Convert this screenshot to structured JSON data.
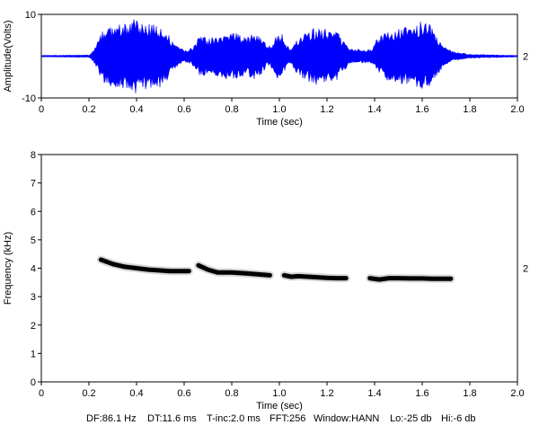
{
  "chart_data": [
    {
      "type": "line",
      "title": "",
      "xlabel": "Time (sec)",
      "ylabel": "Amplitude(Volts)",
      "xlim": [
        0,
        2.0
      ],
      "ylim": [
        -10,
        10
      ],
      "x_ticks": [
        "0",
        "0.2",
        "0.4",
        "0.6",
        "0.8",
        "1.0",
        "1.2",
        "1.4",
        "1.6",
        "1.8",
        "2.0"
      ],
      "y_ticks": [
        "10",
        "-10"
      ],
      "channel_label": "2",
      "grid": false,
      "color": "#0000ff",
      "series": [
        {
          "envelope_x": [
            0,
            0.2,
            0.22,
            0.24,
            0.26,
            0.3,
            0.34,
            0.38,
            0.4,
            0.42,
            0.46,
            0.5,
            0.53,
            0.55,
            0.58,
            0.6,
            0.62,
            0.64,
            0.66,
            0.68,
            0.7,
            0.74,
            0.78,
            0.82,
            0.86,
            0.9,
            0.93,
            0.95,
            0.97,
            0.99,
            1.01,
            1.03,
            1.05,
            1.07,
            1.1,
            1.13,
            1.16,
            1.2,
            1.24,
            1.27,
            1.3,
            1.33,
            1.36,
            1.39,
            1.41,
            1.43,
            1.46,
            1.5,
            1.55,
            1.6,
            1.64,
            1.67,
            1.7,
            1.74,
            1.8,
            2.0
          ],
          "envelope_y": [
            0.2,
            0.3,
            1.5,
            4,
            6.5,
            7.5,
            8,
            8.5,
            9.2,
            8.5,
            8,
            7.5,
            6,
            3.5,
            2,
            1.5,
            1.8,
            2.5,
            4.5,
            5,
            4,
            5.5,
            5.5,
            5.5,
            4.5,
            6,
            4,
            2.5,
            3,
            5.5,
            5.5,
            2.5,
            2,
            4,
            5.5,
            6.5,
            7,
            6.5,
            6,
            3.5,
            2,
            1.8,
            1.7,
            1.8,
            4.5,
            5,
            6,
            6.5,
            7.5,
            8.5,
            7.5,
            4,
            2,
            1,
            0.5,
            0.2
          ]
        }
      ]
    },
    {
      "type": "heatmap",
      "title": "",
      "xlabel": "Time (sec)",
      "ylabel": "Frequency (kHz)",
      "xlim": [
        0,
        2.0
      ],
      "ylim": [
        0,
        8
      ],
      "x_ticks": [
        "0",
        "0.2",
        "0.4",
        "0.6",
        "0.8",
        "1.0",
        "1.2",
        "1.4",
        "1.6",
        "1.8",
        "2.0"
      ],
      "y_ticks": [
        "0",
        "1",
        "2",
        "3",
        "4",
        "5",
        "6",
        "7",
        "8"
      ],
      "channel_label": "2",
      "grid": false,
      "color": "#000000",
      "series": [
        {
          "x": [
            0.25,
            0.3,
            0.35,
            0.4,
            0.45,
            0.5,
            0.54,
            0.58,
            0.62
          ],
          "y": [
            4.3,
            4.15,
            4.05,
            4.0,
            3.95,
            3.92,
            3.9,
            3.9,
            3.9
          ]
        },
        {
          "x": [
            0.66,
            0.7,
            0.74,
            0.8,
            0.86,
            0.92,
            0.96
          ],
          "y": [
            4.1,
            3.95,
            3.85,
            3.85,
            3.82,
            3.78,
            3.75
          ]
        },
        {
          "x": [
            1.02,
            1.05,
            1.08,
            1.12,
            1.16,
            1.2,
            1.24,
            1.28
          ],
          "y": [
            3.75,
            3.7,
            3.72,
            3.7,
            3.68,
            3.66,
            3.65,
            3.65
          ]
        },
        {
          "x": [
            1.38,
            1.42,
            1.46,
            1.5,
            1.55,
            1.6,
            1.64,
            1.68,
            1.72
          ],
          "y": [
            3.65,
            3.6,
            3.65,
            3.65,
            3.64,
            3.64,
            3.63,
            3.63,
            3.63
          ]
        }
      ]
    }
  ],
  "footer": {
    "df": "DF:86.1 Hz",
    "dt": "DT:11.6 ms",
    "tinc": "T-inc:2.0 ms",
    "fft": "FFT:256",
    "window": "Window:HANN",
    "lo": "Lo:-25 db",
    "hi": "Hi:-6 db"
  }
}
